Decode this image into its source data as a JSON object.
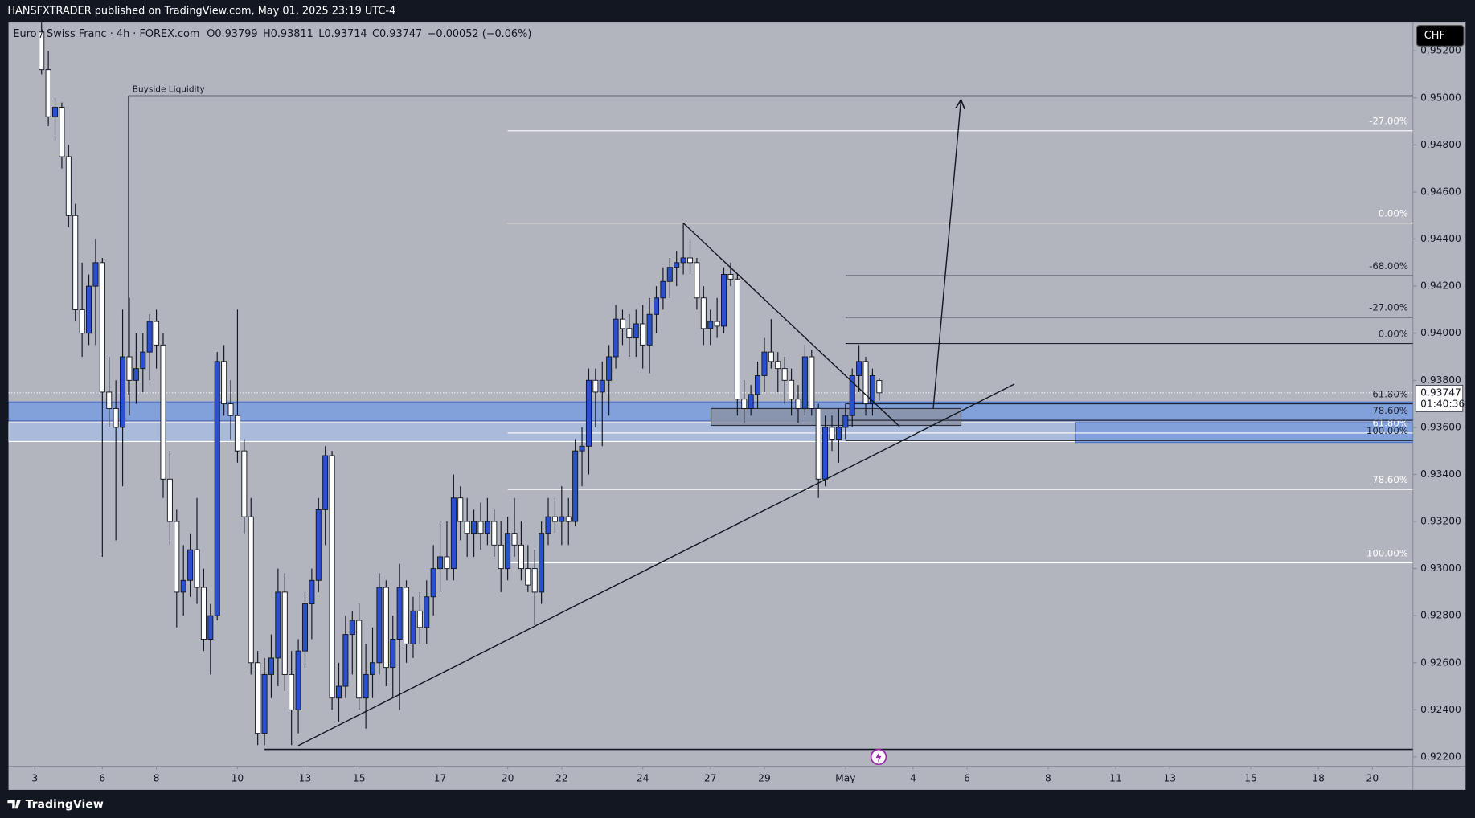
{
  "header": {
    "published": "HANSFXTRADER published on TradingView.com, May 01, 2025 23:19 UTC-4",
    "symbol": [
      "Euro / Swiss Franc · 4h · FOREX.com",
      "O0.93799",
      "H0.93811",
      "L0.93714",
      "C0.93747",
      "−0.00052 (−0.06%)"
    ],
    "currency": "CHF"
  },
  "footer": {
    "brand": "TradingView"
  },
  "chart_data": {
    "type": "candlestick",
    "xlim": [
      -3.9,
      204
    ],
    "ylim": [
      0.9216,
      0.9532
    ],
    "up_color": "#2a4fcf",
    "down_color": "#ffffff",
    "xticks": [
      {
        "value": 0,
        "label": "3"
      },
      {
        "value": 10,
        "label": "6"
      },
      {
        "value": 18,
        "label": "8"
      },
      {
        "value": 30,
        "label": "10"
      },
      {
        "value": 40,
        "label": "13"
      },
      {
        "value": 48,
        "label": "15"
      },
      {
        "value": 60,
        "label": "17"
      },
      {
        "value": 70,
        "label": "20"
      },
      {
        "value": 78,
        "label": "22"
      },
      {
        "value": 90,
        "label": "24"
      },
      {
        "value": 100,
        "label": "27"
      },
      {
        "value": 108,
        "label": "29"
      },
      {
        "value": 120,
        "label": "May"
      },
      {
        "value": 130,
        "label": "4"
      },
      {
        "value": 138,
        "label": "6"
      },
      {
        "value": 150,
        "label": "8"
      },
      {
        "value": 160,
        "label": "11"
      },
      {
        "value": 168,
        "label": "13"
      },
      {
        "value": 180,
        "label": "15"
      },
      {
        "value": 190,
        "label": "18"
      },
      {
        "value": 198,
        "label": "20"
      }
    ],
    "yticks": [
      {
        "value": 0.922,
        "label": "0.92200"
      },
      {
        "value": 0.924,
        "label": "0.92400"
      },
      {
        "value": 0.926,
        "label": "0.92600"
      },
      {
        "value": 0.928,
        "label": "0.92800"
      },
      {
        "value": 0.93,
        "label": "0.93000"
      },
      {
        "value": 0.932,
        "label": "0.93200"
      },
      {
        "value": 0.934,
        "label": "0.93400"
      },
      {
        "value": 0.936,
        "label": "0.93600"
      },
      {
        "value": 0.938,
        "label": "0.93800"
      },
      {
        "value": 0.94,
        "label": "0.94000"
      },
      {
        "value": 0.942,
        "label": "0.94200"
      },
      {
        "value": 0.944,
        "label": "0.94400"
      },
      {
        "value": 0.946,
        "label": "0.94600"
      },
      {
        "value": 0.948,
        "label": "0.94800"
      },
      {
        "value": 0.95,
        "label": "0.95000"
      },
      {
        "value": 0.952,
        "label": "0.95200"
      }
    ],
    "last_price": {
      "value": 0.93747,
      "label": "0.93747",
      "countdown": "01:40:36"
    },
    "x": [
      1,
      2,
      3,
      4,
      5,
      6,
      7,
      8,
      9,
      10,
      11,
      12,
      13,
      14,
      15,
      16,
      17,
      18,
      19,
      20,
      21,
      22,
      23,
      24,
      25,
      26,
      27,
      28,
      29,
      30,
      31,
      32,
      33,
      34,
      35,
      36,
      37,
      38,
      39,
      40,
      41,
      42,
      43,
      44,
      45,
      46,
      47,
      48,
      49,
      50,
      51,
      52,
      53,
      54,
      55,
      56,
      57,
      58,
      59,
      60,
      61,
      62,
      63,
      64,
      65,
      66,
      67,
      68,
      69,
      70,
      71,
      72,
      73,
      74,
      75,
      76,
      77,
      78,
      79,
      80,
      81,
      82,
      83,
      84,
      85,
      86,
      87,
      88,
      89,
      90,
      91,
      92,
      93,
      94,
      95,
      96,
      97,
      98,
      99,
      100,
      101,
      102,
      103,
      104,
      105,
      106,
      107,
      108,
      109,
      110,
      111,
      112,
      113,
      114,
      115,
      116,
      117,
      118,
      119,
      120,
      121,
      122,
      123,
      124,
      125
    ],
    "ohlc": [
      [
        0.9528,
        0.9532,
        0.951,
        0.9512
      ],
      [
        0.9512,
        0.952,
        0.9488,
        0.9492
      ],
      [
        0.9492,
        0.95,
        0.9482,
        0.9496
      ],
      [
        0.9496,
        0.9498,
        0.947,
        0.9475
      ],
      [
        0.9475,
        0.948,
        0.9445,
        0.945
      ],
      [
        0.945,
        0.9455,
        0.9405,
        0.941
      ],
      [
        0.941,
        0.943,
        0.939,
        0.94
      ],
      [
        0.94,
        0.9425,
        0.9395,
        0.942
      ],
      [
        0.942,
        0.944,
        0.9395,
        0.943
      ],
      [
        0.943,
        0.9432,
        0.9305,
        0.9375
      ],
      [
        0.9375,
        0.939,
        0.936,
        0.9368
      ],
      [
        0.9368,
        0.938,
        0.9312,
        0.936
      ],
      [
        0.936,
        0.941,
        0.9335,
        0.939
      ],
      [
        0.939,
        0.9415,
        0.9365,
        0.938
      ],
      [
        0.938,
        0.94,
        0.937,
        0.9385
      ],
      [
        0.9385,
        0.94,
        0.9375,
        0.9392
      ],
      [
        0.9392,
        0.9408,
        0.938,
        0.9405
      ],
      [
        0.9405,
        0.941,
        0.9385,
        0.9395
      ],
      [
        0.9395,
        0.94,
        0.933,
        0.9338
      ],
      [
        0.9338,
        0.935,
        0.931,
        0.932
      ],
      [
        0.932,
        0.9325,
        0.9275,
        0.929
      ],
      [
        0.929,
        0.931,
        0.928,
        0.9295
      ],
      [
        0.9295,
        0.9315,
        0.9288,
        0.9308
      ],
      [
        0.9308,
        0.933,
        0.9285,
        0.9292
      ],
      [
        0.9292,
        0.93,
        0.9265,
        0.927
      ],
      [
        0.927,
        0.9285,
        0.9255,
        0.928
      ],
      [
        0.928,
        0.9392,
        0.9278,
        0.9388
      ],
      [
        0.9388,
        0.9395,
        0.9365,
        0.937
      ],
      [
        0.937,
        0.938,
        0.9355,
        0.9365
      ],
      [
        0.9365,
        0.941,
        0.9345,
        0.935
      ],
      [
        0.935,
        0.9355,
        0.9315,
        0.9322
      ],
      [
        0.9322,
        0.933,
        0.9255,
        0.926
      ],
      [
        0.926,
        0.9265,
        0.9225,
        0.923
      ],
      [
        0.923,
        0.9262,
        0.9225,
        0.9255
      ],
      [
        0.9255,
        0.9272,
        0.9245,
        0.9262
      ],
      [
        0.9262,
        0.93,
        0.925,
        0.929
      ],
      [
        0.929,
        0.9298,
        0.9248,
        0.9255
      ],
      [
        0.9255,
        0.9265,
        0.9225,
        0.924
      ],
      [
        0.924,
        0.927,
        0.923,
        0.9265
      ],
      [
        0.9265,
        0.929,
        0.9258,
        0.9285
      ],
      [
        0.9285,
        0.93,
        0.927,
        0.9295
      ],
      [
        0.9295,
        0.933,
        0.929,
        0.9325
      ],
      [
        0.9325,
        0.9352,
        0.931,
        0.9348
      ],
      [
        0.9348,
        0.935,
        0.924,
        0.9245
      ],
      [
        0.9245,
        0.926,
        0.9235,
        0.925
      ],
      [
        0.925,
        0.928,
        0.9245,
        0.9272
      ],
      [
        0.9272,
        0.9282,
        0.9255,
        0.9278
      ],
      [
        0.9278,
        0.9285,
        0.924,
        0.9245
      ],
      [
        0.9245,
        0.9268,
        0.9232,
        0.9255
      ],
      [
        0.9255,
        0.9275,
        0.9245,
        0.926
      ],
      [
        0.926,
        0.9298,
        0.9255,
        0.9292
      ],
      [
        0.9292,
        0.9295,
        0.925,
        0.9258
      ],
      [
        0.9258,
        0.928,
        0.9245,
        0.927
      ],
      [
        0.927,
        0.9302,
        0.924,
        0.9292
      ],
      [
        0.9292,
        0.9295,
        0.926,
        0.9268
      ],
      [
        0.9268,
        0.9288,
        0.9262,
        0.9282
      ],
      [
        0.9282,
        0.929,
        0.9268,
        0.9275
      ],
      [
        0.9275,
        0.9295,
        0.9268,
        0.9288
      ],
      [
        0.9288,
        0.931,
        0.928,
        0.93
      ],
      [
        0.93,
        0.932,
        0.929,
        0.9305
      ],
      [
        0.9305,
        0.932,
        0.9295,
        0.93
      ],
      [
        0.93,
        0.934,
        0.9295,
        0.933
      ],
      [
        0.933,
        0.9335,
        0.9312,
        0.932
      ],
      [
        0.932,
        0.933,
        0.9305,
        0.9315
      ],
      [
        0.9315,
        0.9325,
        0.9305,
        0.932
      ],
      [
        0.932,
        0.9328,
        0.9308,
        0.9315
      ],
      [
        0.9315,
        0.933,
        0.931,
        0.932
      ],
      [
        0.932,
        0.9325,
        0.9305,
        0.931
      ],
      [
        0.931,
        0.932,
        0.929,
        0.93
      ],
      [
        0.93,
        0.9322,
        0.9295,
        0.9315
      ],
      [
        0.9315,
        0.933,
        0.9305,
        0.931
      ],
      [
        0.931,
        0.932,
        0.9295,
        0.93
      ],
      [
        0.93,
        0.931,
        0.929,
        0.9293
      ],
      [
        0.93,
        0.9308,
        0.9276,
        0.929
      ],
      [
        0.929,
        0.932,
        0.9285,
        0.9315
      ],
      [
        0.9315,
        0.933,
        0.931,
        0.9322
      ],
      [
        0.9322,
        0.933,
        0.9315,
        0.932
      ],
      [
        0.932,
        0.9335,
        0.931,
        0.9322
      ],
      [
        0.9322,
        0.933,
        0.931,
        0.932
      ],
      [
        0.932,
        0.9355,
        0.9318,
        0.935
      ],
      [
        0.935,
        0.936,
        0.9335,
        0.9352
      ],
      [
        0.9352,
        0.9385,
        0.934,
        0.938
      ],
      [
        0.938,
        0.9385,
        0.936,
        0.9375
      ],
      [
        0.9375,
        0.9388,
        0.9352,
        0.938
      ],
      [
        0.938,
        0.9395,
        0.9365,
        0.939
      ],
      [
        0.939,
        0.9412,
        0.9385,
        0.9406
      ],
      [
        0.9406,
        0.941,
        0.9395,
        0.9402
      ],
      [
        0.9402,
        0.9408,
        0.939,
        0.9398
      ],
      [
        0.9398,
        0.941,
        0.939,
        0.9404
      ],
      [
        0.9404,
        0.9412,
        0.9385,
        0.9395
      ],
      [
        0.9395,
        0.9415,
        0.9383,
        0.9408
      ],
      [
        0.9408,
        0.942,
        0.94,
        0.9415
      ],
      [
        0.9415,
        0.9428,
        0.941,
        0.9422
      ],
      [
        0.9422,
        0.9432,
        0.9415,
        0.9428
      ],
      [
        0.9428,
        0.9435,
        0.942,
        0.943
      ],
      [
        0.943,
        0.9447,
        0.9425,
        0.9432
      ],
      [
        0.9432,
        0.944,
        0.9425,
        0.943
      ],
      [
        0.943,
        0.9432,
        0.941,
        0.9415
      ],
      [
        0.9415,
        0.942,
        0.9395,
        0.9402
      ],
      [
        0.9402,
        0.941,
        0.9395,
        0.9405
      ],
      [
        0.9405,
        0.9415,
        0.9398,
        0.9403
      ],
      [
        0.9403,
        0.9428,
        0.94,
        0.9425
      ],
      [
        0.9425,
        0.943,
        0.942,
        0.9423
      ],
      [
        0.9423,
        0.9425,
        0.9365,
        0.9372
      ],
      [
        0.9372,
        0.938,
        0.9362,
        0.9368
      ],
      [
        0.9368,
        0.9378,
        0.9365,
        0.9374
      ],
      [
        0.9374,
        0.9388,
        0.9368,
        0.9382
      ],
      [
        0.9382,
        0.9398,
        0.9375,
        0.9392
      ],
      [
        0.9392,
        0.9406,
        0.9385,
        0.9388
      ],
      [
        0.9388,
        0.9392,
        0.9375,
        0.9385
      ],
      [
        0.9385,
        0.939,
        0.937,
        0.938
      ],
      [
        0.938,
        0.9385,
        0.9365,
        0.9372
      ],
      [
        0.9372,
        0.9378,
        0.9362,
        0.9368
      ],
      [
        0.9368,
        0.9395,
        0.9365,
        0.939
      ],
      [
        0.939,
        0.9393,
        0.9365,
        0.9368
      ],
      [
        0.9368,
        0.937,
        0.933,
        0.9338
      ],
      [
        0.9338,
        0.9365,
        0.9335,
        0.936
      ],
      [
        0.936,
        0.9365,
        0.935,
        0.9355
      ],
      [
        0.9355,
        0.9368,
        0.9345,
        0.936
      ],
      [
        0.936,
        0.937,
        0.9355,
        0.9365
      ],
      [
        0.9365,
        0.9385,
        0.936,
        0.9382
      ],
      [
        0.9382,
        0.9395,
        0.9375,
        0.9388
      ],
      [
        0.9388,
        0.939,
        0.9365,
        0.937
      ],
      [
        0.937,
        0.9385,
        0.9365,
        0.9382
      ],
      [
        0.93799,
        0.93811,
        0.93714,
        0.93747
      ]
    ],
    "zones": [
      {
        "x": [
          -3.9,
          204
        ],
        "price": [
          0.93708,
          0.93628
        ],
        "fill": "#7c9fde",
        "stroke": "#4f73c9"
      },
      {
        "x": [
          -3.9,
          154
        ],
        "price": [
          0.9362,
          0.9354
        ],
        "fill": "#a9badd",
        "stroke": "#ffffff"
      },
      {
        "x": [
          154,
          204
        ],
        "price": [
          0.9362,
          0.93536
        ],
        "fill": "#7c9ede",
        "stroke": "#4f73c9"
      },
      {
        "x": [
          100.1,
          137.1
        ],
        "price": [
          0.9368,
          0.93608
        ],
        "fill": "#8a92a8",
        "stroke": "#2b2f3a"
      }
    ],
    "hlines": [
      {
        "x": [
          13.9,
          204
        ],
        "price": 0.95008,
        "label": "Buyside Liquidity",
        "color": "#131722"
      },
      {
        "x": [
          34,
          204
        ],
        "price": 0.92232,
        "color": "#131722"
      }
    ],
    "vlines": [
      {
        "x": 13.9,
        "price": [
          0.95008,
          0.9374
        ],
        "color": "#131722"
      }
    ],
    "fibs": [
      {
        "x": [
          70,
          204
        ],
        "color": "#ffffff",
        "levels": [
          {
            "label": "-27.00%",
            "price": 0.9486
          },
          {
            "label": "0.00%",
            "price": 0.94468
          },
          {
            "label": "61.80%",
            "price": 0.93576
          },
          {
            "label": "78.60%",
            "price": 0.93336
          },
          {
            "label": "100.00%",
            "price": 0.93024
          }
        ]
      },
      {
        "x": [
          120,
          204
        ],
        "color": "#1e222d",
        "levels": [
          {
            "label": "-68.00%",
            "price": 0.94244
          },
          {
            "label": "-27.00%",
            "price": 0.94068
          },
          {
            "label": "0.00%",
            "price": 0.93956
          },
          {
            "label": "61.80%",
            "price": 0.937
          },
          {
            "label": "78.60%",
            "price": 0.9363
          },
          {
            "label": "100.00%",
            "price": 0.93544
          }
        ]
      }
    ],
    "trendlines": [
      {
        "points": [
          [
            39,
            0.92248
          ],
          [
            145,
            0.93784
          ]
        ],
        "color": "#131722"
      },
      {
        "points": [
          [
            96,
            0.94468
          ],
          [
            128,
            0.93604
          ]
        ],
        "color": "#131722"
      }
    ],
    "arrows": [
      {
        "points": [
          [
            133,
            0.9368
          ],
          [
            137.1,
            0.94992
          ]
        ],
        "color": "#131722"
      }
    ]
  }
}
